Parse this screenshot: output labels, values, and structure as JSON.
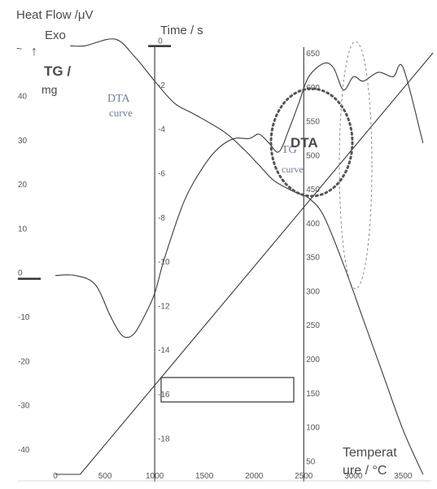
{
  "chart_data": {
    "type": "line",
    "labels": {
      "heat_flow": "Heat Flow /μV",
      "exo": "Exo",
      "tg_unit_bold": "TG /",
      "tg_unit_mg": "mg",
      "time": "Time / s",
      "temperature_1": "Temperat",
      "temperature_2": "ure / °C",
      "dta_curve_1": "DTA",
      "dta_curve_2": "curve",
      "tg_curve_1": "TG",
      "tg_curve_2": "curve",
      "dta_circle": "DTA"
    },
    "x_axis": {
      "ticks": [
        "0",
        "500",
        "1000",
        "1500",
        "2000",
        "2500",
        "3000",
        "3500"
      ],
      "range": [
        0,
        3800
      ]
    },
    "heat_flow_axis": {
      "ticks": [
        "40",
        "30",
        "20",
        "10",
        "0",
        "-10",
        "-20",
        "-30",
        "-40"
      ],
      "range": [
        -45,
        55
      ]
    },
    "time_axis": {
      "ticks": [
        "0",
        "-2",
        "-4",
        "-6",
        "-8",
        "-10",
        "-12",
        "-14",
        "-16",
        "-18"
      ],
      "range": [
        -19.5,
        0.5
      ]
    },
    "temperature_axis": {
      "ticks": [
        "650",
        "600",
        "550",
        "500",
        "450",
        "400",
        "350",
        "300",
        "250",
        "200",
        "150",
        "100",
        "50"
      ],
      "range": [
        30,
        680
      ]
    },
    "series": [
      {
        "name": "DTA curve",
        "axis": "heat_flow",
        "x": [
          0,
          200,
          400,
          550,
          650,
          720,
          800,
          900,
          1000,
          1100,
          1300,
          1500,
          1650,
          1800,
          1950,
          2050,
          2150,
          2250,
          2350,
          2450,
          2550,
          2700,
          2800,
          2900,
          3000,
          3100,
          3250,
          3400,
          3500,
          3700
        ],
        "values": [
          0,
          0,
          -2,
          -9,
          -13,
          -14,
          -13,
          -9,
          -4,
          4,
          17,
          25,
          29,
          31,
          31,
          32,
          30,
          28,
          33,
          39,
          45,
          48,
          47,
          42,
          45,
          44,
          46,
          45,
          47,
          30
        ]
      },
      {
        "name": "TG curve",
        "axis": "time",
        "x": [
          150,
          300,
          600,
          800,
          1000,
          1200,
          1400,
          1700,
          1900,
          2050,
          2200,
          2400,
          2550,
          2700,
          2900,
          3100,
          3300,
          3500,
          3700
        ],
        "values": [
          -0.1,
          -0.1,
          0.2,
          -0.6,
          -1.7,
          -2.7,
          -3.2,
          -4.0,
          -4.8,
          -5.5,
          -6.2,
          -6.7,
          -7.0,
          -7.8,
          -10.0,
          -12.5,
          -15.0,
          -17.5,
          -19.5
        ]
      },
      {
        "name": "Temperature",
        "axis": "temperature",
        "x": [
          0,
          250,
          3800
        ],
        "values": [
          30,
          30,
          650
        ]
      }
    ],
    "grid": false,
    "legend": "none"
  }
}
